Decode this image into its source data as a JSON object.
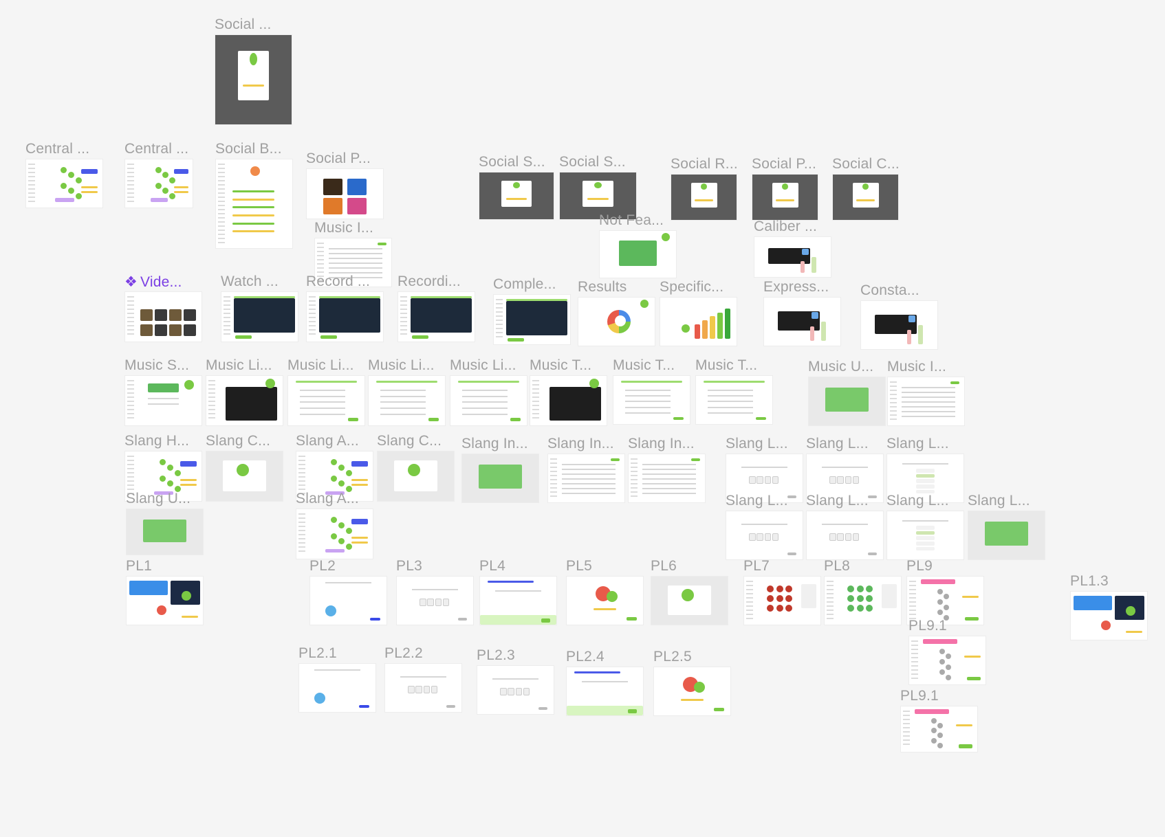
{
  "canvas": {
    "background": "#f5f5f5",
    "label_color": "#a0a0a0",
    "component_color": "#7b3fe4",
    "accent_green": "#7ac943"
  },
  "frames": [
    {
      "label": "Social ...",
      "style": "dark"
    },
    {
      "label": "Central ...",
      "style": "map"
    },
    {
      "label": "Central ...",
      "style": "map"
    },
    {
      "label": "Social B...",
      "style": "list"
    },
    {
      "label": "Social P...",
      "style": "photos"
    },
    {
      "label": "Music I...",
      "style": "text"
    },
    {
      "label": "Social S...",
      "style": "dark"
    },
    {
      "label": "Social S...",
      "style": "dark"
    },
    {
      "label": "Social R...",
      "style": "dark"
    },
    {
      "label": "Social P...",
      "style": "dark"
    },
    {
      "label": "Social C...",
      "style": "dark"
    },
    {
      "label": "Not Fea...",
      "style": "green"
    },
    {
      "label": "Caliber ...",
      "style": "popup"
    },
    {
      "label": "Vide...",
      "style": "grid",
      "component": true
    },
    {
      "label": "Watch ...",
      "style": "video"
    },
    {
      "label": "Record ...",
      "style": "video"
    },
    {
      "label": "Recordi...",
      "style": "video"
    },
    {
      "label": "Comple...",
      "style": "video"
    },
    {
      "label": "Results",
      "style": "donut"
    },
    {
      "label": "Specific...",
      "style": "bars"
    },
    {
      "label": "Express...",
      "style": "popup"
    },
    {
      "label": "Consta...",
      "style": "popup"
    },
    {
      "label": "Music S...",
      "style": "music"
    },
    {
      "label": "Music Li...",
      "style": "darkpanel"
    },
    {
      "label": "Music Li...",
      "style": "form"
    },
    {
      "label": "Music Li...",
      "style": "form"
    },
    {
      "label": "Music Li...",
      "style": "form"
    },
    {
      "label": "Music T...",
      "style": "darkpanel"
    },
    {
      "label": "Music T...",
      "style": "form"
    },
    {
      "label": "Music T...",
      "style": "form"
    },
    {
      "label": "Music U...",
      "style": "greenpanel"
    },
    {
      "label": "Music I...",
      "style": "text"
    },
    {
      "label": "Slang H...",
      "style": "map"
    },
    {
      "label": "Slang C...",
      "style": "modal"
    },
    {
      "label": "Slang A...",
      "style": "map"
    },
    {
      "label": "Slang C...",
      "style": "modal"
    },
    {
      "label": "Slang In...",
      "style": "greenpanel"
    },
    {
      "label": "Slang In...",
      "style": "text"
    },
    {
      "label": "Slang In...",
      "style": "text"
    },
    {
      "label": "Slang L...",
      "style": "quiz"
    },
    {
      "label": "Slang L...",
      "style": "quiz"
    },
    {
      "label": "Slang L...",
      "style": "quizlist"
    },
    {
      "label": "Slang U...",
      "style": "greenpanel"
    },
    {
      "label": "Slang A...",
      "style": "map"
    },
    {
      "label": "Slang L...",
      "style": "quiz"
    },
    {
      "label": "Slang L...",
      "style": "quiz"
    },
    {
      "label": "Slang L...",
      "style": "quizlist"
    },
    {
      "label": "Slang L...",
      "style": "greenpanel"
    },
    {
      "label": "PL1",
      "style": "dash"
    },
    {
      "label": "PL2",
      "style": "blank"
    },
    {
      "label": "PL3",
      "style": "quiz"
    },
    {
      "label": "PL4",
      "style": "quizfoot"
    },
    {
      "label": "PL5",
      "style": "mascot"
    },
    {
      "label": "PL6",
      "style": "modal"
    },
    {
      "label": "PL7",
      "style": "redmap"
    },
    {
      "label": "PL8",
      "style": "greenmap"
    },
    {
      "label": "PL9",
      "style": "path"
    },
    {
      "label": "PL9.1",
      "style": "path"
    },
    {
      "label": "PL9.1",
      "style": "path"
    },
    {
      "label": "PL1.3",
      "style": "dash"
    },
    {
      "label": "PL2.1",
      "style": "blank"
    },
    {
      "label": "PL2.2",
      "style": "quiz"
    },
    {
      "label": "PL2.3",
      "style": "quiz"
    },
    {
      "label": "PL2.4",
      "style": "quizfoot"
    },
    {
      "label": "PL2.5",
      "style": "mascot"
    }
  ]
}
